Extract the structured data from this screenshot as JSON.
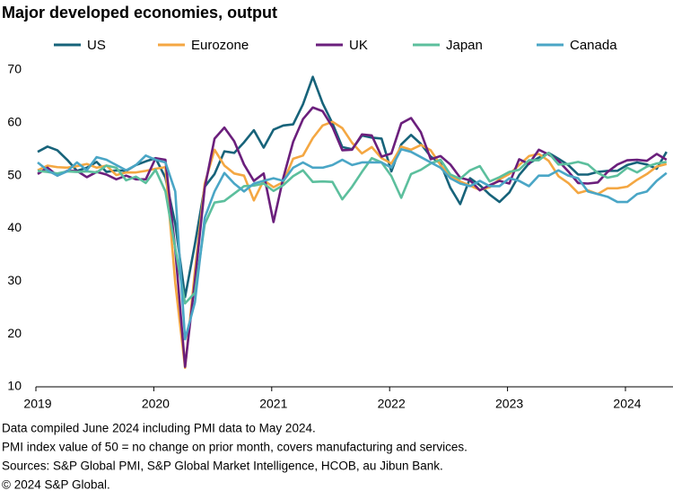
{
  "chart_data": {
    "type": "line",
    "title": "Major developed economies, output",
    "categories": [
      "2019",
      null,
      null,
      null,
      null,
      null,
      null,
      null,
      null,
      null,
      null,
      null,
      "2020",
      null,
      null,
      null,
      null,
      null,
      null,
      null,
      null,
      null,
      null,
      null,
      "2021",
      null,
      null,
      null,
      null,
      null,
      null,
      null,
      null,
      null,
      null,
      null,
      "2022",
      null,
      null,
      null,
      null,
      null,
      null,
      null,
      null,
      null,
      null,
      null,
      "2023",
      null,
      null,
      null,
      null,
      null,
      null,
      null,
      null,
      null,
      null,
      null,
      "2024",
      null,
      null,
      null,
      null
    ],
    "ylim": [
      10,
      70
    ],
    "yticks": [
      10,
      20,
      30,
      40,
      50,
      60,
      70
    ],
    "grid": false,
    "series": [
      {
        "name": "US",
        "color": "#17637a",
        "values": [
          54.5,
          55.5,
          54.8,
          53.0,
          50.9,
          51.5,
          52.6,
          50.7,
          51.0,
          50.9,
          52.0,
          52.7,
          53.3,
          49.6,
          40.9,
          27.0,
          37.0,
          47.9,
          50.3,
          54.6,
          54.3,
          56.3,
          58.6,
          55.3,
          58.7,
          59.5,
          59.7,
          63.5,
          68.7,
          63.7,
          59.9,
          55.4,
          55.0,
          57.6,
          57.2,
          57.0,
          50.8,
          55.9,
          57.7,
          56.0,
          53.6,
          52.3,
          47.7,
          44.6,
          49.5,
          48.2,
          46.4,
          45.0,
          46.8,
          50.1,
          52.3,
          53.4,
          54.3,
          53.2,
          52.0,
          50.2,
          50.2,
          50.7,
          50.9,
          50.9,
          52.0,
          52.5,
          52.1,
          51.3,
          54.5
        ]
      },
      {
        "name": "Eurozone",
        "color": "#f4a742",
        "values": [
          51.0,
          51.9,
          51.6,
          51.5,
          51.8,
          52.2,
          51.5,
          51.9,
          50.1,
          50.6,
          50.6,
          50.9,
          51.3,
          51.6,
          29.7,
          13.6,
          31.9,
          48.5,
          54.9,
          51.9,
          50.4,
          50.0,
          45.3,
          49.1,
          47.8,
          48.8,
          53.2,
          53.8,
          57.1,
          59.5,
          60.2,
          59.0,
          56.2,
          54.2,
          55.4,
          53.3,
          52.3,
          55.5,
          54.9,
          55.8,
          54.8,
          52.0,
          49.9,
          48.9,
          48.1,
          47.3,
          47.8,
          49.3,
          50.3,
          52.0,
          53.7,
          54.1,
          52.8,
          49.9,
          48.6,
          46.7,
          47.2,
          46.5,
          47.6,
          47.6,
          47.9,
          49.2,
          50.3,
          51.7,
          52.2
        ]
      },
      {
        "name": "UK",
        "color": "#6b1f7c",
        "values": [
          50.3,
          51.5,
          50.0,
          50.9,
          50.9,
          49.7,
          50.7,
          50.2,
          49.3,
          50.0,
          49.3,
          49.3,
          53.3,
          53.0,
          36.0,
          13.8,
          30.0,
          47.7,
          57.0,
          59.1,
          56.5,
          52.1,
          49.0,
          50.4,
          41.2,
          49.6,
          56.4,
          60.7,
          62.9,
          62.2,
          59.2,
          54.8,
          54.9,
          57.8,
          57.6,
          53.6,
          54.2,
          59.9,
          60.9,
          58.2,
          53.1,
          53.7,
          52.1,
          49.6,
          49.1,
          47.2,
          48.2,
          49.0,
          48.5,
          53.1,
          52.2,
          54.9,
          54.0,
          52.8,
          50.8,
          48.6,
          48.5,
          48.7,
          50.7,
          52.1,
          52.9,
          53.0,
          52.8,
          54.1,
          53.0
        ]
      },
      {
        "name": "Japan",
        "color": "#5cbf9d",
        "values": [
          50.9,
          50.7,
          50.4,
          50.8,
          50.7,
          50.8,
          50.6,
          51.9,
          51.5,
          49.1,
          49.8,
          48.6,
          51.1,
          47.0,
          36.2,
          25.8,
          27.8,
          40.8,
          44.9,
          45.2,
          46.6,
          48.0,
          48.1,
          48.5,
          47.1,
          48.2,
          49.9,
          51.0,
          48.8,
          48.9,
          48.8,
          45.5,
          47.9,
          50.7,
          53.3,
          52.5,
          49.9,
          45.8,
          50.3,
          51.1,
          52.3,
          53.0,
          50.2,
          49.4,
          51.0,
          51.8,
          48.9,
          49.7,
          50.7,
          51.1,
          52.9,
          52.9,
          54.3,
          52.1,
          52.2,
          52.6,
          52.1,
          50.5,
          49.6,
          50.0,
          51.5,
          50.6,
          51.7,
          52.3,
          52.6
        ]
      },
      {
        "name": "Canada",
        "color": "#4aa6c6",
        "values": [
          52.5,
          51.0,
          50.0,
          50.8,
          52.5,
          51.0,
          53.5,
          53.0,
          52.0,
          51.0,
          52.0,
          53.8,
          53.0,
          52.5,
          47.0,
          19.0,
          26.0,
          42.0,
          47.0,
          50.5,
          48.5,
          47.0,
          48.5,
          49.0,
          49.5,
          49.0,
          51.5,
          52.5,
          51.5,
          51.5,
          52.0,
          53.0,
          52.0,
          52.5,
          52.5,
          52.5,
          51.5,
          55.0,
          54.5,
          53.5,
          52.5,
          51.5,
          49.5,
          48.5,
          48.0,
          49.0,
          48.0,
          48.0,
          49.5,
          49.0,
          48.0,
          50.0,
          50.0,
          51.0,
          50.0,
          49.5,
          47.0,
          46.5,
          46.0,
          45.0,
          45.0,
          46.5,
          47.0,
          49.0,
          50.5
        ]
      }
    ],
    "notes": [
      "Data compiled June 2024 including PMI data to May 2024.",
      "PMI index value of 50 = no change on prior month, covers manufacturing and services.",
      "Sources: S&P Global PMI, S&P Global Market Intelligence, HCOB, au Jibun Bank.",
      "© 2024 S&P Global."
    ]
  }
}
